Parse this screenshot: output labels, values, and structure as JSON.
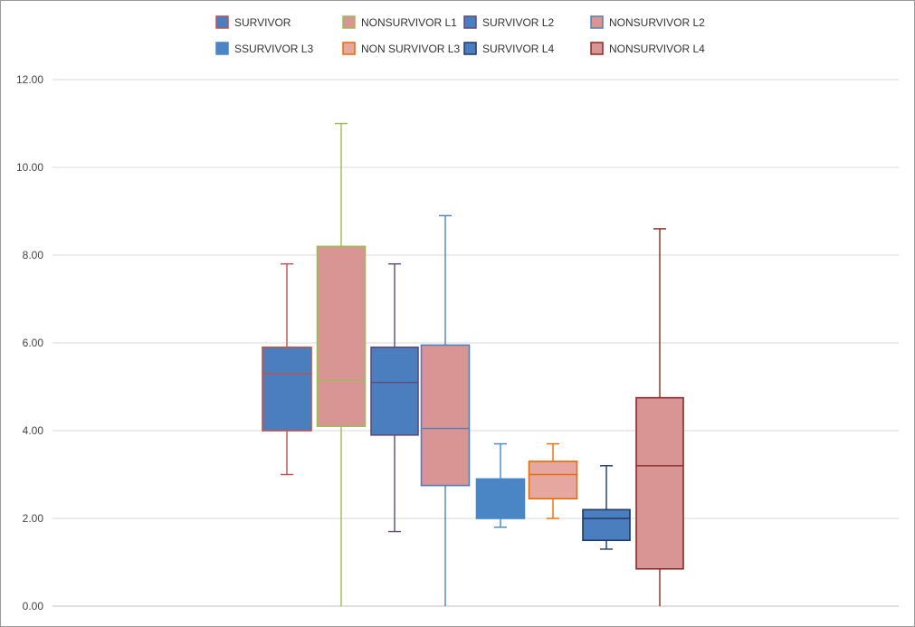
{
  "chart_data": {
    "type": "box",
    "title": "",
    "xlabel": "",
    "ylabel": "",
    "ylim": [
      0,
      12
    ],
    "yticks": [
      "0.00",
      "2.00",
      "4.00",
      "6.00",
      "8.00",
      "10.00",
      "12.00"
    ],
    "grid": true,
    "legend_position": "top",
    "series": [
      {
        "name": "SURVIVOR",
        "min": 3.0,
        "q1": 4.0,
        "median": 5.3,
        "q3": 5.9,
        "max": 7.8,
        "fill": "#4a7ebf",
        "stroke": "#c0504d"
      },
      {
        "name": "NONSURVIVOR L1",
        "min": 0.0,
        "q1": 4.1,
        "median": 5.15,
        "q3": 8.2,
        "max": 11.0,
        "fill": "#d99594",
        "stroke": "#9bbb59"
      },
      {
        "name": "SURVIVOR L2",
        "min": 1.7,
        "q1": 3.9,
        "median": 5.1,
        "q3": 5.9,
        "max": 7.8,
        "fill": "#4a7ebf",
        "stroke": "#604a7b"
      },
      {
        "name": "NONSURVIVOR L2",
        "min": 0.0,
        "q1": 2.75,
        "median": 4.05,
        "q3": 5.95,
        "max": 8.9,
        "fill": "#d99594",
        "stroke": "#4f81bd"
      },
      {
        "name": "SSURVIVOR L3",
        "min": 1.8,
        "q1": 2.0,
        "median": 2.5,
        "q3": 2.9,
        "max": 3.7,
        "fill": "#4a86c5",
        "stroke": "#4a86c5"
      },
      {
        "name": "NON SURVIVOR L3",
        "min": 2.0,
        "q1": 2.45,
        "median": 3.0,
        "q3": 3.3,
        "max": 3.7,
        "fill": "#e6a7a0",
        "stroke": "#e46c0a"
      },
      {
        "name": "SURVIVOR L4",
        "min": 1.3,
        "q1": 1.5,
        "median": 2.0,
        "q3": 2.2,
        "max": 3.2,
        "fill": "#4a7ebf",
        "stroke": "#1f3864"
      },
      {
        "name": "NONSURVIVOR L4",
        "min": 0.0,
        "q1": 0.85,
        "median": 3.2,
        "q3": 4.75,
        "max": 8.6,
        "fill": "#d99594",
        "stroke": "#8b2a2a"
      }
    ]
  },
  "colors": {
    "grid": "#d9d9d9",
    "axis": "#bfbfbf",
    "frame": "#9a9a9a"
  }
}
